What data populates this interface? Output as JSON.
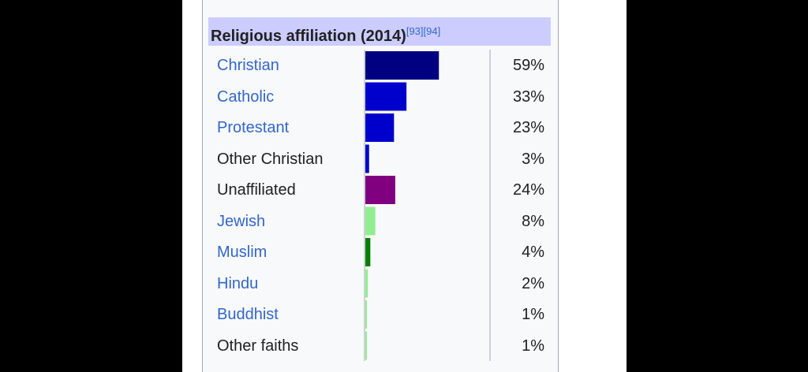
{
  "chart_data": {
    "type": "bar",
    "title": "Religious affiliation (2014)",
    "title_refs": "[93][94]",
    "categories": [
      "Christian",
      "Catholic",
      "Protestant",
      "Other Christian",
      "Unaffiliated",
      "Jewish",
      "Muslim",
      "Hindu",
      "Buddhist",
      "Other faiths"
    ],
    "values": [
      59,
      33,
      23,
      3,
      24,
      8,
      4,
      2,
      1,
      1
    ],
    "value_labels": [
      "59%",
      "33%",
      "23%",
      "3%",
      "24%",
      "8%",
      "4%",
      "2%",
      "1%",
      "1%"
    ],
    "colors": [
      "#000080",
      "#0000cc",
      "#0000cc",
      "#0000cc",
      "#800080",
      "#90ee90",
      "#008000",
      "#90ee90",
      "#90ee90",
      "#90ee90"
    ],
    "linked": [
      true,
      true,
      true,
      false,
      false,
      true,
      true,
      true,
      true,
      false
    ],
    "xlim": [
      0,
      100
    ],
    "orientation": "horizontal",
    "grid": false
  }
}
